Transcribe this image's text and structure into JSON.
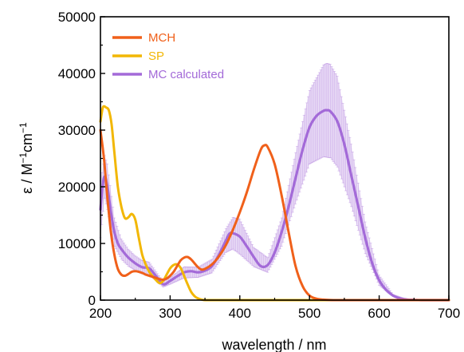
{
  "chart_data": {
    "type": "line",
    "title": "",
    "xlabel": "wavelength / nm",
    "ylabel_parts": [
      "ε / M",
      "−1",
      "cm",
      "−1"
    ],
    "xlim": [
      200,
      700
    ],
    "ylim": [
      0,
      50000
    ],
    "xticks": [
      200,
      300,
      400,
      500,
      600,
      700
    ],
    "yticks": [
      0,
      10000,
      20000,
      30000,
      40000,
      50000
    ],
    "grid": false,
    "legend_position": "top-left",
    "series": [
      {
        "name": "MCH",
        "color": "#f0601a",
        "x": [
          200,
          205,
          210,
          215,
          220,
          225,
          230,
          235,
          240,
          245,
          250,
          255,
          260,
          265,
          270,
          275,
          280,
          285,
          290,
          295,
          300,
          305,
          310,
          315,
          320,
          325,
          330,
          335,
          340,
          345,
          350,
          360,
          370,
          380,
          390,
          400,
          410,
          420,
          430,
          435,
          440,
          450,
          460,
          470,
          480,
          490,
          500,
          510,
          520,
          530,
          540,
          550,
          600,
          650,
          700
        ],
        "y": [
          30000,
          25000,
          18000,
          12000,
          8000,
          5500,
          4500,
          4300,
          4600,
          5000,
          5100,
          5000,
          4800,
          4500,
          4300,
          4100,
          3900,
          3700,
          3600,
          3800,
          4300,
          5000,
          6000,
          7000,
          7500,
          7600,
          7200,
          6500,
          5800,
          5400,
          5500,
          6300,
          7700,
          9700,
          12400,
          15500,
          19000,
          23000,
          26500,
          27300,
          27000,
          24000,
          18500,
          12000,
          6000,
          2500,
          800,
          250,
          80,
          20,
          0,
          0,
          0,
          0,
          0
        ]
      },
      {
        "name": "SP",
        "color": "#f2b705",
        "x": [
          200,
          203,
          205,
          208,
          212,
          216,
          220,
          225,
          230,
          235,
          240,
          245,
          250,
          255,
          260,
          265,
          270,
          275,
          280,
          285,
          290,
          295,
          300,
          305,
          310,
          315,
          320,
          325,
          330,
          335,
          340,
          345,
          350,
          360,
          380,
          400,
          500,
          600,
          700
        ],
        "y": [
          31500,
          33800,
          34200,
          34000,
          33500,
          31000,
          26000,
          20000,
          16500,
          14500,
          14600,
          15200,
          14200,
          11000,
          8000,
          6300,
          5000,
          4200,
          3500,
          3000,
          3400,
          4500,
          5600,
          6200,
          6300,
          5700,
          4300,
          2800,
          1500,
          700,
          300,
          100,
          0,
          0,
          0,
          0,
          0,
          0,
          0
        ]
      },
      {
        "name": "MC calculated",
        "color": "#a36ad8",
        "x": [
          200,
          203,
          206,
          210,
          215,
          220,
          225,
          230,
          240,
          250,
          260,
          270,
          280,
          290,
          300,
          310,
          320,
          330,
          340,
          350,
          360,
          370,
          380,
          385,
          390,
          400,
          410,
          420,
          430,
          440,
          450,
          460,
          470,
          480,
          490,
          500,
          510,
          520,
          525,
          530,
          540,
          550,
          560,
          570,
          580,
          590,
          600,
          610,
          620,
          630,
          640,
          650,
          660,
          680,
          700
        ],
        "y": [
          16000,
          20000,
          21800,
          20000,
          15500,
          12000,
          10000,
          9000,
          7500,
          6500,
          5800,
          5600,
          4200,
          2800,
          3400,
          4200,
          4900,
          5100,
          4900,
          5200,
          6000,
          8000,
          10500,
          11700,
          11800,
          11200,
          9500,
          7600,
          6000,
          6200,
          8400,
          12000,
          16500,
          21500,
          26500,
          30500,
          32500,
          33400,
          33500,
          33300,
          31500,
          27500,
          22000,
          16500,
          11000,
          6500,
          3500,
          1800,
          800,
          300,
          100,
          40,
          0,
          0,
          0
        ]
      }
    ],
    "mc_error_band": {
      "x": [
        200,
        206,
        210,
        220,
        230,
        240,
        250,
        260,
        270,
        280,
        290,
        300,
        320,
        340,
        360,
        380,
        390,
        400,
        420,
        440,
        460,
        480,
        500,
        520,
        525,
        530,
        540,
        560,
        580,
        600,
        620,
        640,
        660
      ],
      "upper": [
        21000,
        25500,
        24000,
        14500,
        10800,
        9000,
        7800,
        7000,
        6700,
        5000,
        3300,
        4000,
        5900,
        5800,
        7200,
        12600,
        14600,
        14300,
        9300,
        7500,
        14500,
        26000,
        37000,
        41500,
        41800,
        41600,
        39500,
        27500,
        13800,
        4400,
        1000,
        150,
        0
      ],
      "lower": [
        11000,
        18000,
        16000,
        9500,
        7200,
        6000,
        5200,
        4600,
        4500,
        3400,
        2300,
        2800,
        3900,
        4000,
        4800,
        8400,
        9000,
        8100,
        5900,
        4900,
        9500,
        17000,
        24000,
        25300,
        25200,
        25100,
        23500,
        16500,
        8200,
        2600,
        600,
        50,
        0
      ]
    }
  }
}
